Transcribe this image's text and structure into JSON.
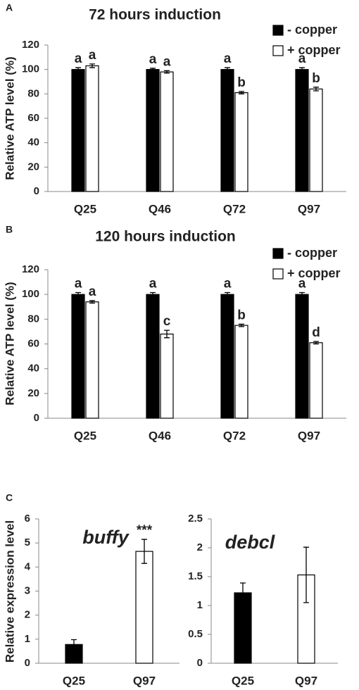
{
  "chart_data": [
    {
      "type": "bar",
      "panel": "A",
      "title": "72 hours induction",
      "ylabel": "Relative ATP level (%)",
      "categories": [
        "Q25",
        "Q46",
        "Q72",
        "Q97"
      ],
      "series": [
        {
          "name": "- copper",
          "color": "#000000",
          "values": [
            100,
            100,
            100,
            100
          ],
          "errors": [
            1.5,
            1,
            1.5,
            1.5
          ],
          "annotations": [
            "a",
            "a",
            "a",
            "a"
          ]
        },
        {
          "name": "+ copper",
          "color": "#ffffff",
          "values": [
            103,
            98,
            81,
            84
          ],
          "errors": [
            1.5,
            1,
            1,
            1.5
          ],
          "annotations": [
            "a",
            "a",
            "b",
            "b"
          ]
        }
      ],
      "ylim": [
        0,
        120
      ],
      "yticks": [
        0,
        20,
        40,
        60,
        80,
        100,
        120
      ],
      "legend": "top-right"
    },
    {
      "type": "bar",
      "panel": "B",
      "title": "120 hours induction",
      "ylabel": "Relative ATP level (%)",
      "categories": [
        "Q25",
        "Q46",
        "Q72",
        "Q97"
      ],
      "series": [
        {
          "name": "- copper",
          "color": "#000000",
          "values": [
            100,
            100,
            100,
            100
          ],
          "errors": [
            1.5,
            1.5,
            1.5,
            1.5
          ],
          "annotations": [
            "a",
            "a",
            "a",
            "a"
          ]
        },
        {
          "name": "+ copper",
          "color": "#ffffff",
          "values": [
            94,
            68,
            75,
            61
          ],
          "errors": [
            1,
            3,
            1,
            1
          ],
          "annotations": [
            "a",
            "c",
            "b",
            "d"
          ]
        }
      ],
      "ylim": [
        0,
        120
      ],
      "yticks": [
        0,
        20,
        40,
        60,
        80,
        100,
        120
      ],
      "legend": "top-right"
    },
    {
      "type": "bar",
      "panel": "C",
      "title": "buffy",
      "ylabel": "Relative expression level",
      "categories": [
        "Q25",
        "Q97"
      ],
      "values": [
        0.78,
        4.65
      ],
      "errors": [
        0.2,
        0.5
      ],
      "colors": [
        "#000000",
        "#ffffff"
      ],
      "annotations": [
        null,
        "***"
      ],
      "ylim": [
        0,
        6
      ],
      "yticks": [
        0,
        1,
        2,
        3,
        4,
        5,
        6
      ]
    },
    {
      "type": "bar",
      "title": "debcl",
      "categories": [
        "Q25",
        "Q97"
      ],
      "values": [
        1.22,
        1.53
      ],
      "errors": [
        0.17,
        0.48
      ],
      "colors": [
        "#000000",
        "#ffffff"
      ],
      "ylim": [
        0,
        2.5
      ],
      "yticks": [
        0,
        0.5,
        1,
        1.5,
        2,
        2.5
      ]
    }
  ]
}
